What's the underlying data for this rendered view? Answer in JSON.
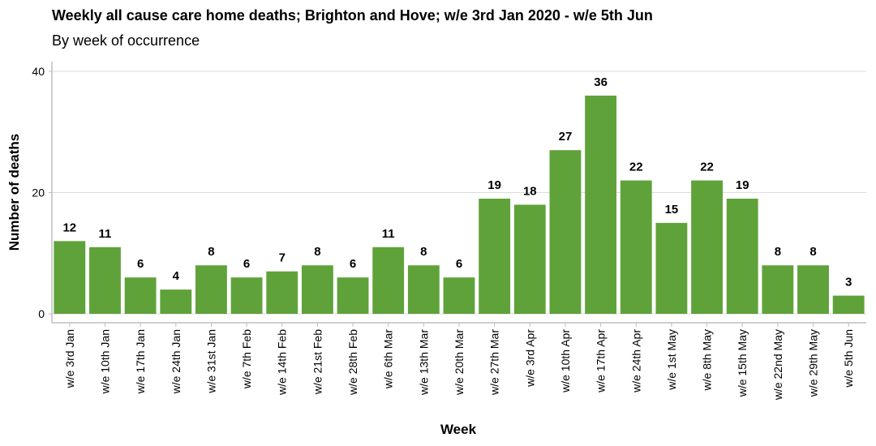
{
  "chart_data": {
    "type": "bar",
    "title": "Weekly all cause care home deaths; Brighton and Hove; w/e 3rd Jan 2020 - w/e 5th Jun",
    "subtitle": "By week of occurrence",
    "xlabel": "Week",
    "ylabel": "Number of deaths",
    "ylim": [
      0,
      40
    ],
    "yticks": [
      0,
      20,
      40
    ],
    "grid": "horizontal",
    "bar_color": "#5fa23a",
    "categories": [
      "w/e 3rd Jan",
      "w/e 10th Jan",
      "w/e 17th Jan",
      "w/e 24th Jan",
      "w/e 31st Jan",
      "w/e 7th Feb",
      "w/e 14th Feb",
      "w/e 21st Feb",
      "w/e 28th Feb",
      "w/e 6th Mar",
      "w/e 13th Mar",
      "w/e 20th Mar",
      "w/e 27th Mar",
      "w/e 3rd Apr",
      "w/e 10th Apr",
      "w/e 17th Apr",
      "w/e 24th Apr",
      "w/e 1st May",
      "w/e 8th May",
      "w/e 15th May",
      "w/e 22nd May",
      "w/e 29th May",
      "w/e 5th Jun"
    ],
    "values": [
      12,
      11,
      6,
      4,
      8,
      6,
      7,
      8,
      6,
      11,
      8,
      6,
      19,
      18,
      27,
      36,
      22,
      15,
      22,
      19,
      8,
      8,
      3
    ]
  }
}
